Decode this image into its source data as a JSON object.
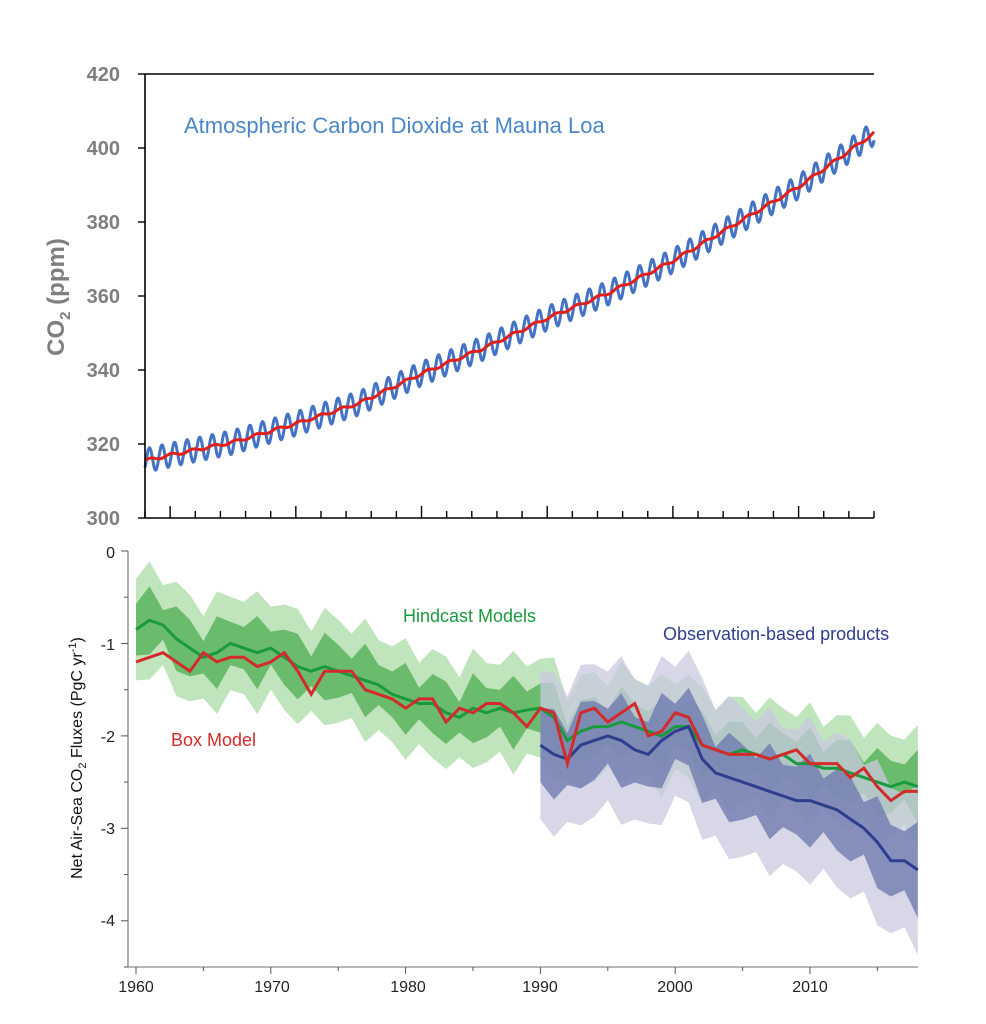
{
  "chart_data": [
    {
      "type": "line",
      "title": "Atmospheric Carbon Dioxide at Mauna Loa",
      "ylabel": "CO2 (ppm)",
      "ylabel_main": "CO",
      "ylabel_sub": "2",
      "ylabel_units": " (ppm)",
      "xlim": [
        1958,
        2016
      ],
      "ylim": [
        300,
        420
      ],
      "yticks": [
        "300",
        "320",
        "340",
        "360",
        "380",
        "400",
        "420"
      ],
      "grid": false,
      "series": [
        {
          "kind": "monthly",
          "color": "#4472c4",
          "seasonal_amplitude_ppm": 3.2
        },
        {
          "kind": "trend",
          "color": "#e0201b",
          "x": [
            1958,
            1960,
            1965,
            1970,
            1975,
            1980,
            1985,
            1990,
            1995,
            2000,
            2005,
            2010,
            2016
          ],
          "y": [
            315.5,
            317,
            320.5,
            325.5,
            331,
            339,
            346,
            354,
            361,
            369.5,
            379.5,
            389.5,
            404
          ]
        }
      ]
    },
    {
      "type": "area",
      "title": "",
      "xlabel": "",
      "ylabel": "Net Air-Sea CO2 Fluxes (PgC yr-1)",
      "ylabel_main": "Net Air-Sea CO",
      "ylabel_sub": "2",
      "ylabel_units": " Fluxes (PgC yr",
      "ylabel_sup": "-1",
      "ylabel_end": ")",
      "xlim": [
        1960,
        2018
      ],
      "ylim": [
        -4.5,
        0
      ],
      "xticks": [
        "1960",
        "1970",
        "1980",
        "1990",
        "2000",
        "2010"
      ],
      "yticks": [
        "-4",
        "-3",
        "-2",
        "-1",
        "0"
      ],
      "grid": false,
      "series": [
        {
          "name": "Hindcast Models",
          "color": "#1a9a3e",
          "outer_color": "#b9e1b5",
          "inner_color": "#5cb45f",
          "x": [
            1960,
            1961,
            1962,
            1963,
            1964,
            1965,
            1966,
            1967,
            1968,
            1969,
            1970,
            1971,
            1972,
            1973,
            1974,
            1975,
            1976,
            1977,
            1978,
            1979,
            1980,
            1981,
            1982,
            1983,
            1984,
            1985,
            1986,
            1987,
            1988,
            1989,
            1990,
            1991,
            1992,
            1993,
            1994,
            1995,
            1996,
            1997,
            1998,
            1999,
            2000,
            2001,
            2002,
            2003,
            2004,
            2005,
            2006,
            2007,
            2008,
            2009,
            2010,
            2011,
            2012,
            2013,
            2014,
            2015,
            2016,
            2017,
            2018
          ],
          "values": [
            -0.85,
            -0.75,
            -0.8,
            -0.95,
            -1.05,
            -1.15,
            -1.1,
            -1.0,
            -1.05,
            -1.1,
            -1.05,
            -1.15,
            -1.25,
            -1.3,
            -1.25,
            -1.3,
            -1.35,
            -1.4,
            -1.45,
            -1.55,
            -1.6,
            -1.65,
            -1.65,
            -1.75,
            -1.8,
            -1.7,
            -1.75,
            -1.7,
            -1.75,
            -1.72,
            -1.7,
            -1.8,
            -2.05,
            -1.95,
            -1.9,
            -1.9,
            -1.85,
            -1.9,
            -1.95,
            -2.0,
            -1.9,
            -1.9,
            -2.1,
            -2.15,
            -2.2,
            -2.15,
            -2.2,
            -2.25,
            -2.2,
            -2.3,
            -2.3,
            -2.35,
            -2.35,
            -2.4,
            -2.45,
            -2.5,
            -2.55,
            -2.5,
            -2.55
          ],
          "inner_halfwidth": 0.28,
          "outer_halfwidth": 0.55
        },
        {
          "name": "Observation-based products",
          "color": "#2e3e8f",
          "outer_color": "#c9c9e0",
          "inner_color": "#6b75ad",
          "x": [
            1990,
            1991,
            1992,
            1993,
            1994,
            1995,
            1996,
            1997,
            1998,
            1999,
            2000,
            2001,
            2002,
            2003,
            2004,
            2005,
            2006,
            2007,
            2008,
            2009,
            2010,
            2011,
            2012,
            2013,
            2014,
            2015,
            2016,
            2017,
            2018
          ],
          "values": [
            -2.1,
            -2.2,
            -2.25,
            -2.1,
            -2.05,
            -2.0,
            -2.05,
            -2.15,
            -2.2,
            -2.05,
            -1.95,
            -1.9,
            -2.25,
            -2.4,
            -2.45,
            -2.5,
            -2.55,
            -2.6,
            -2.65,
            -2.7,
            -2.7,
            -2.75,
            -2.8,
            -2.9,
            -3.0,
            -3.15,
            -3.35,
            -3.35,
            -3.45
          ],
          "inner_halfwidth": 0.4,
          "outer_halfwidth": 0.8
        },
        {
          "name": "Box Model",
          "color": "#d22b2b",
          "x": [
            1960,
            1961,
            1962,
            1963,
            1964,
            1965,
            1966,
            1967,
            1968,
            1969,
            1970,
            1971,
            1972,
            1973,
            1974,
            1975,
            1976,
            1977,
            1978,
            1979,
            1980,
            1981,
            1982,
            1983,
            1984,
            1985,
            1986,
            1987,
            1988,
            1989,
            1990,
            1991,
            1992,
            1993,
            1994,
            1995,
            1996,
            1997,
            1998,
            1999,
            2000,
            2001,
            2002,
            2003,
            2004,
            2005,
            2006,
            2007,
            2008,
            2009,
            2010,
            2011,
            2012,
            2013,
            2014,
            2015,
            2016,
            2017,
            2018
          ],
          "values": [
            -1.2,
            -1.15,
            -1.1,
            -1.2,
            -1.3,
            -1.1,
            -1.2,
            -1.15,
            -1.15,
            -1.25,
            -1.2,
            -1.1,
            -1.3,
            -1.55,
            -1.3,
            -1.3,
            -1.3,
            -1.5,
            -1.55,
            -1.6,
            -1.7,
            -1.6,
            -1.6,
            -1.85,
            -1.7,
            -1.75,
            -1.65,
            -1.65,
            -1.75,
            -1.9,
            -1.7,
            -1.75,
            -2.3,
            -1.75,
            -1.7,
            -1.85,
            -1.75,
            -1.65,
            -2.0,
            -1.95,
            -1.75,
            -1.8,
            -2.1,
            -2.15,
            -2.2,
            -2.2,
            -2.2,
            -2.25,
            -2.2,
            -2.15,
            -2.3,
            -2.3,
            -2.3,
            -2.45,
            -2.35,
            -2.55,
            -2.7,
            -2.6,
            -2.6
          ]
        }
      ],
      "annotations": [
        "Hindcast Models",
        "Observation-based products",
        "Box Model"
      ]
    }
  ]
}
